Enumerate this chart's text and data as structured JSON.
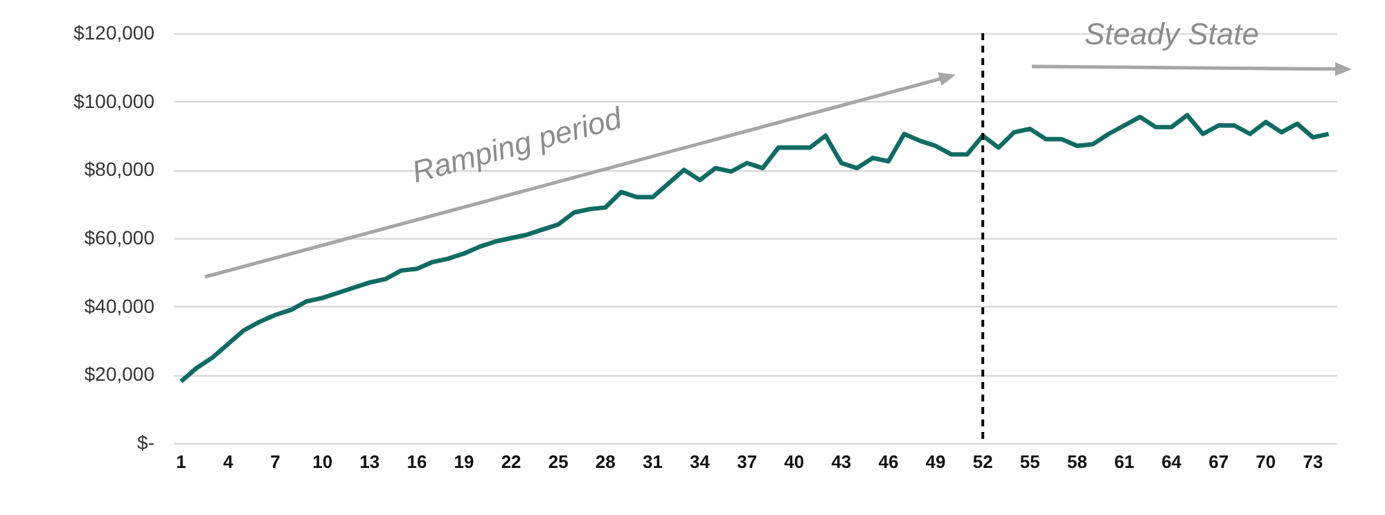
{
  "chart_data": {
    "type": "line",
    "x": [
      1,
      2,
      3,
      4,
      5,
      6,
      7,
      8,
      9,
      10,
      11,
      12,
      13,
      14,
      15,
      16,
      17,
      18,
      19,
      20,
      21,
      22,
      23,
      24,
      25,
      26,
      27,
      28,
      29,
      30,
      31,
      32,
      33,
      34,
      35,
      36,
      37,
      38,
      39,
      40,
      41,
      42,
      43,
      44,
      45,
      46,
      47,
      48,
      49,
      50,
      51,
      52,
      53,
      54,
      55,
      56,
      57,
      58,
      59,
      60,
      61,
      62,
      63,
      64,
      65,
      66,
      67,
      68,
      69,
      70,
      71,
      72,
      73,
      74
    ],
    "series": [
      {
        "color": "#0f6b63",
        "values": [
          18000,
          22000,
          25000,
          29000,
          33000,
          35500,
          37500,
          39000,
          41500,
          42500,
          44000,
          45500,
          47000,
          48000,
          50500,
          51000,
          53000,
          54000,
          55500,
          57500,
          59000,
          60000,
          61000,
          62500,
          64000,
          67500,
          68500,
          69000,
          73500,
          72000,
          72000,
          76000,
          80000,
          77000,
          80500,
          79500,
          82000,
          80500,
          86500,
          86500,
          86500,
          90000,
          82000,
          80500,
          83500,
          82500,
          90500,
          88500,
          87000,
          84500,
          84500,
          90000,
          86500,
          91000,
          92000,
          89000,
          89000,
          87000,
          87500,
          90500,
          93000,
          95500,
          92500,
          92500,
          96000,
          90500,
          93000,
          93000,
          90500,
          94000,
          91000,
          93500,
          89500,
          90500
        ]
      }
    ],
    "xlim": [
      0.5,
      74.5
    ],
    "xticks": [
      1,
      4,
      7,
      10,
      13,
      16,
      19,
      22,
      25,
      28,
      31,
      34,
      37,
      40,
      43,
      46,
      49,
      52,
      55,
      58,
      61,
      64,
      67,
      70,
      73
    ],
    "ylim": [
      0,
      120000
    ],
    "yticks": [
      {
        "value": 0,
        "label": "$-"
      },
      {
        "value": 20000,
        "label": "$20,000"
      },
      {
        "value": 40000,
        "label": "$40,000"
      },
      {
        "value": 60000,
        "label": "$60,000"
      },
      {
        "value": 80000,
        "label": "$80,000"
      },
      {
        "value": 100000,
        "label": "$100,000"
      },
      {
        "value": 120000,
        "label": "$120,000"
      }
    ],
    "grid": "y",
    "ref_lines": [
      {
        "axis": "x",
        "value": 52,
        "color": "#000000",
        "line_style": "dashed"
      }
    ],
    "annotations": [
      "Ramping period",
      "Steady State"
    ]
  }
}
